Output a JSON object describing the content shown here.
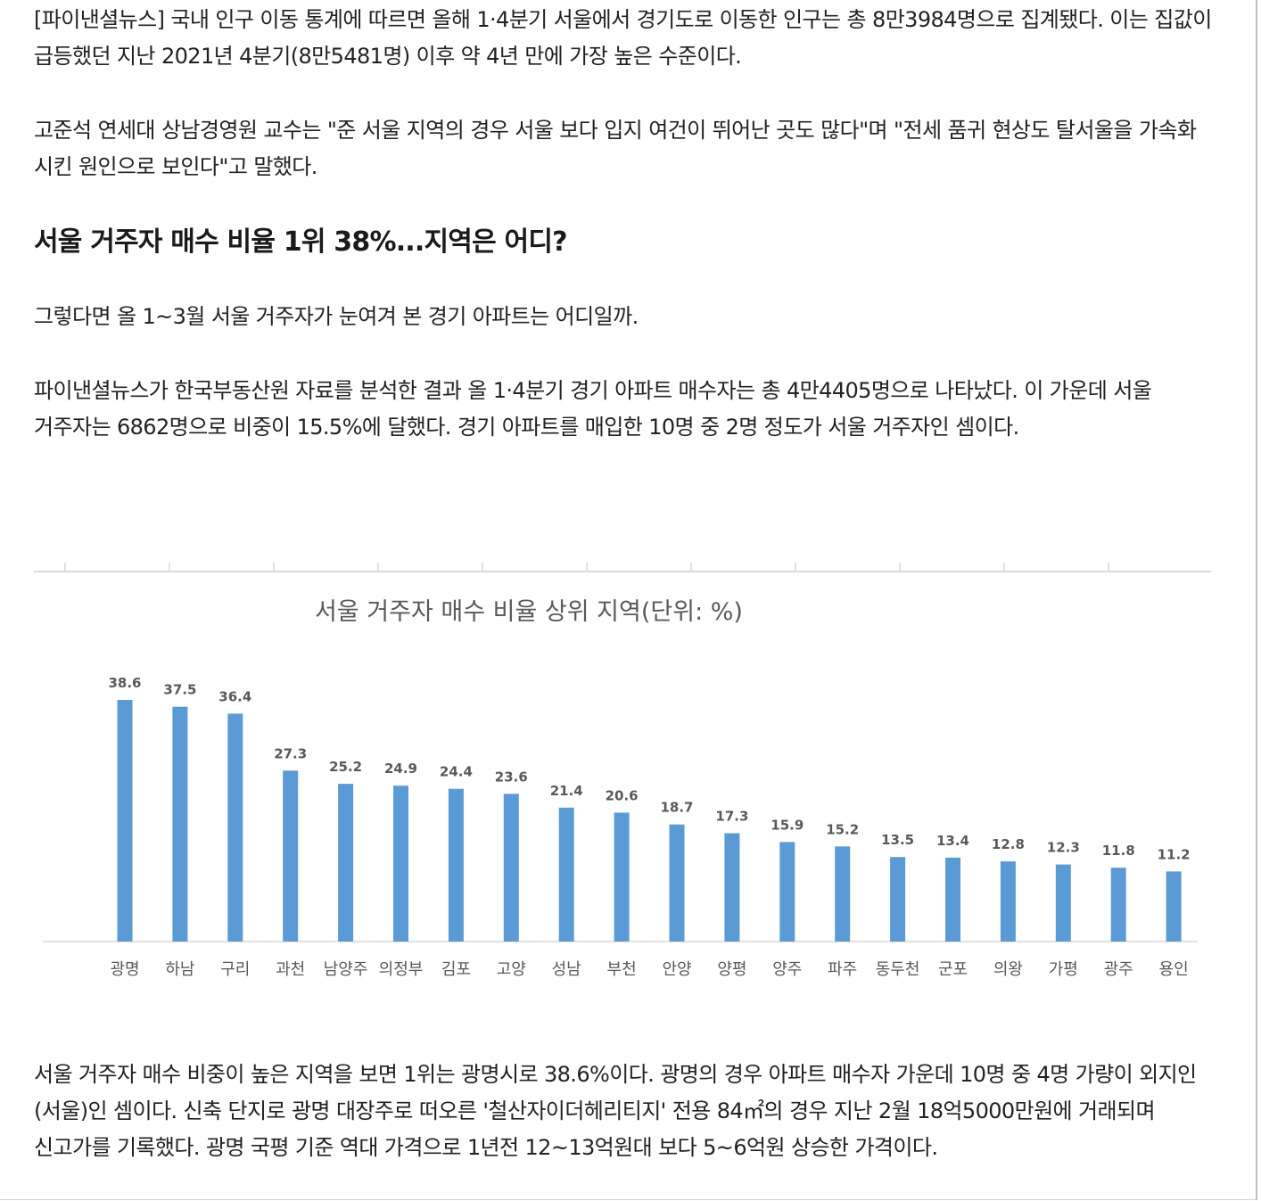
{
  "article": {
    "paragraph_1": "[파이낸셜뉴스] 국내 인구 이동 통계에 따르면 올해 1·4분기 서울에서 경기도로 이동한 인구는 총 8만3984명으로 집계됐다. 이는 집값이 급등했던 지난 2021년 4분기(8만5481명) 이후 약 4년 만에 가장 높은 수준이다.",
    "paragraph_2": "고준석 연세대 상남경영원 교수는 \"준 서울 지역의 경우 서울 보다 입지 여건이 뛰어난 곳도 많다\"며 \"전세 품귀 현상도 탈서울을 가속화 시킨 원인으로 보인다\"고 말했다.",
    "heading": "서울 거주자 매수 비율 1위 38%...지역은 어디?",
    "paragraph_3": "그렇다면 올 1~3월 서울 거주자가 눈여겨 본 경기 아파트는 어디일까.",
    "paragraph_4": "파이낸셜뉴스가 한국부동산원 자료를 분석한 결과 올 1·4분기 경기 아파트 매수자는 총 4만4405명으로 나타났다. 이 가운데 서울 거주자는 6862명으로 비중이 15.5%에 달했다. 경기 아파트를 매입한 10명 중 2명 정도가 서울 거주자인 셈이다.",
    "paragraph_5": "서울 거주자 매수 비중이 높은 지역을 보면 1위는 광명시로 38.6%이다. 광명의 경우 아파트 매수자 가운데 10명 중 4명 가량이 외지인(서울)인 셈이다. 신축 단지로 광명 대장주로 떠오른 '철산자이더헤리티지' 전용 84㎡의 경우 지난 2월 18억5000만원에 거래되며 신고가를 기록했다. 광명 국평 기준 역대 가격으로 1년전 12~13억원대 보다 5~6억원 상승한 가격이다."
  },
  "chart_data": {
    "type": "bar",
    "title": "서울 거주자 매수 비율 상위 지역(단위: %)",
    "xlabel": "",
    "ylabel": "",
    "categories": [
      "광명",
      "하남",
      "구리",
      "과천",
      "남양주",
      "의정부",
      "김포",
      "고양",
      "성남",
      "부천",
      "안양",
      "양평",
      "양주",
      "파주",
      "동두천",
      "군포",
      "의왕",
      "가평",
      "광주",
      "용인"
    ],
    "values": [
      38.6,
      37.5,
      36.4,
      27.3,
      25.2,
      24.9,
      24.4,
      23.6,
      21.4,
      20.6,
      18.7,
      17.3,
      15.9,
      15.2,
      13.5,
      13.4,
      12.8,
      12.3,
      11.8,
      11.2
    ],
    "value_labels": [
      "38.6",
      "37.5",
      "36.4",
      "27.3",
      "25.2",
      "24.9",
      "24.4",
      "23.6",
      "21.4",
      "20.6",
      "18.7",
      "17.3",
      "15.9",
      "15.2",
      "13.5",
      "13.4",
      "12.8",
      "12.3",
      "11.8",
      "11.2"
    ],
    "ylim": [
      0,
      40
    ],
    "grid": false,
    "legend": "none",
    "bar_color": "#5b9bd5",
    "label_color": "#595959"
  }
}
